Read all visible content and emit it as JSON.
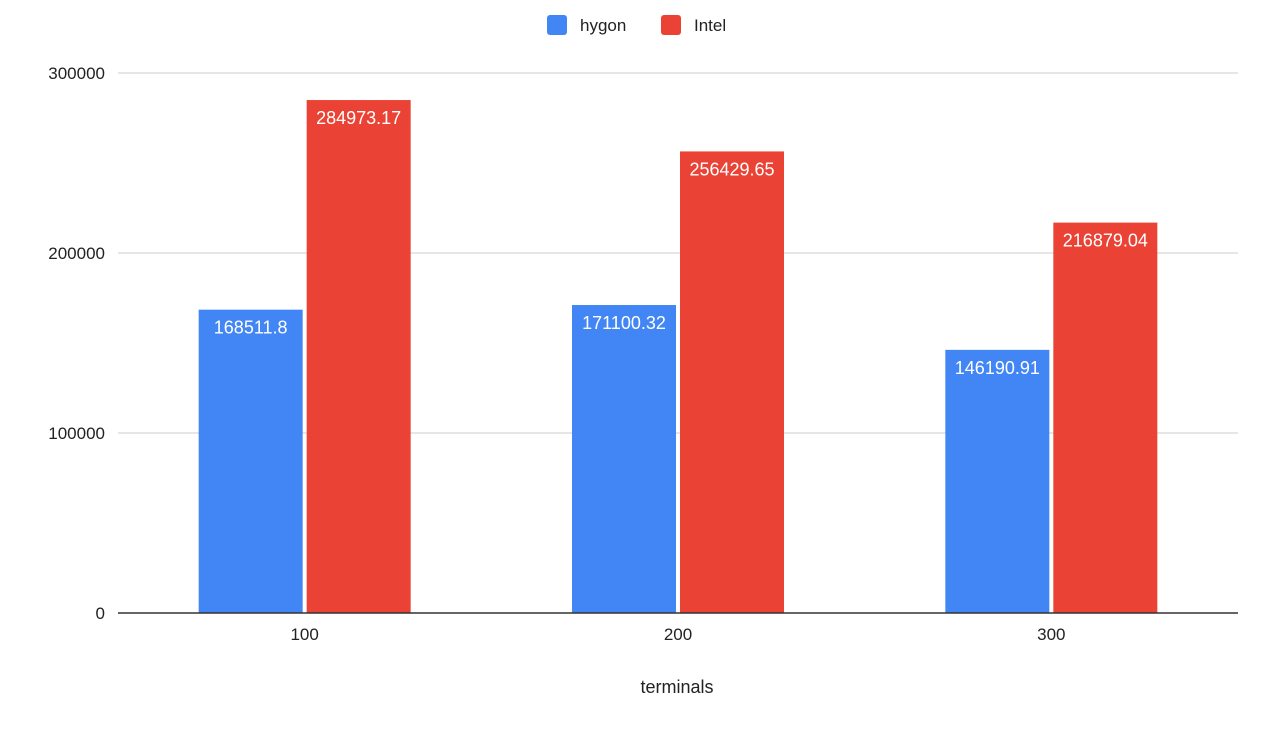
{
  "chart_data": {
    "type": "bar",
    "categories": [
      "100",
      "200",
      "300"
    ],
    "series": [
      {
        "name": "hygon",
        "color": "#4285F4",
        "values": [
          168511.8,
          171100.32,
          146190.91
        ],
        "labels": [
          "168511.8",
          "171100.32",
          "146190.91"
        ]
      },
      {
        "name": "Intel",
        "color": "#EA4335",
        "values": [
          284973.17,
          256429.65,
          216879.04
        ],
        "labels": [
          "284973.17",
          "256429.65",
          "216879.04"
        ]
      }
    ],
    "xlabel": "terminals",
    "ylabel": "",
    "ylim": [
      0,
      300000
    ],
    "yticks": [
      0,
      100000,
      200000,
      300000
    ],
    "ytick_labels": [
      "0",
      "100000",
      "200000",
      "300000"
    ],
    "grid": true,
    "legend_position": "top-center",
    "gridline_color": "#cccccc",
    "axis_color": "#333333"
  }
}
